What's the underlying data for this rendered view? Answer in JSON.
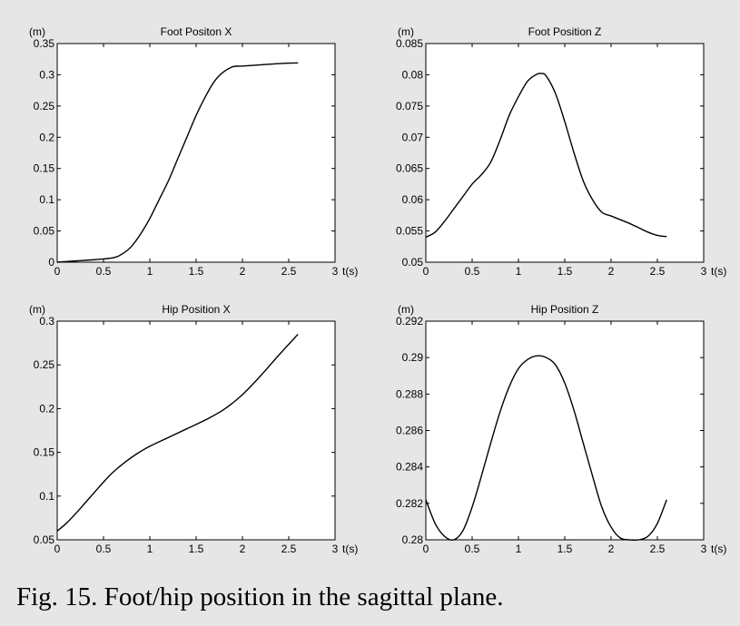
{
  "caption": "Fig. 15. Foot/hip position in the sagittal plane.",
  "chart_data": [
    {
      "type": "line",
      "title": "Foot Positon X",
      "ylabel": "(m)",
      "xlabel": "t(s)",
      "xlim": [
        0,
        3
      ],
      "ylim": [
        0,
        0.35
      ],
      "xticks": [
        "0",
        "0.5",
        "1",
        "1.5",
        "2",
        "2.5",
        "3"
      ],
      "yticks": [
        "0",
        "0.05",
        "0.1",
        "0.15",
        "0.2",
        "0.25",
        "0.3",
        "0.35"
      ],
      "grid": false,
      "series": [
        {
          "x": [
            0,
            0.2,
            0.4,
            0.6,
            0.7,
            0.8,
            0.9,
            1.0,
            1.1,
            1.2,
            1.3,
            1.4,
            1.5,
            1.6,
            1.7,
            1.8,
            1.9,
            2.0,
            2.2,
            2.4,
            2.6
          ],
          "values": [
            0,
            0.002,
            0.004,
            0.007,
            0.013,
            0.025,
            0.045,
            0.07,
            0.1,
            0.13,
            0.165,
            0.2,
            0.235,
            0.265,
            0.29,
            0.305,
            0.313,
            0.314,
            0.316,
            0.318,
            0.319
          ]
        }
      ]
    },
    {
      "type": "line",
      "title": "Foot Position Z",
      "ylabel": "(m)",
      "xlabel": "t(s)",
      "xlim": [
        0,
        3
      ],
      "ylim": [
        0.05,
        0.085
      ],
      "xticks": [
        "0",
        "0.5",
        "1",
        "1.5",
        "2",
        "2.5",
        "3"
      ],
      "yticks": [
        "0.05",
        "0.055",
        "0.06",
        "0.065",
        "0.07",
        "0.075",
        "0.08",
        "0.085"
      ],
      "grid": false,
      "series": [
        {
          "x": [
            0,
            0.1,
            0.2,
            0.3,
            0.4,
            0.5,
            0.6,
            0.7,
            0.8,
            0.9,
            1.0,
            1.1,
            1.2,
            1.25,
            1.3,
            1.4,
            1.5,
            1.6,
            1.7,
            1.8,
            1.9,
            2.0,
            2.1,
            2.2,
            2.3,
            2.4,
            2.5,
            2.6
          ],
          "values": [
            0.054,
            0.0548,
            0.0565,
            0.0585,
            0.0605,
            0.0625,
            0.064,
            0.066,
            0.0695,
            0.0735,
            0.0765,
            0.079,
            0.0801,
            0.0802,
            0.0798,
            0.077,
            0.0725,
            0.0675,
            0.063,
            0.06,
            0.058,
            0.0574,
            0.0568,
            0.0562,
            0.0555,
            0.0548,
            0.0543,
            0.0541
          ]
        }
      ]
    },
    {
      "type": "line",
      "title": "Hip Position X",
      "ylabel": "(m)",
      "xlabel": "t(s)",
      "xlim": [
        0,
        3
      ],
      "ylim": [
        0.05,
        0.3
      ],
      "xticks": [
        "0",
        "0.5",
        "1",
        "1.5",
        "2",
        "2.5",
        "3"
      ],
      "yticks": [
        "0.05",
        "0.1",
        "0.15",
        "0.2",
        "0.25",
        "0.3"
      ],
      "grid": false,
      "series": [
        {
          "x": [
            0,
            0.1,
            0.2,
            0.3,
            0.4,
            0.5,
            0.6,
            0.7,
            0.8,
            0.9,
            1.0,
            1.2,
            1.4,
            1.6,
            1.8,
            2.0,
            2.2,
            2.4,
            2.6
          ],
          "values": [
            0.06,
            0.069,
            0.08,
            0.092,
            0.104,
            0.116,
            0.127,
            0.136,
            0.144,
            0.151,
            0.157,
            0.167,
            0.177,
            0.187,
            0.199,
            0.216,
            0.238,
            0.262,
            0.285
          ]
        }
      ]
    },
    {
      "type": "line",
      "title": "Hip Position Z",
      "ylabel": "(m)",
      "xlabel": "t(s)",
      "xlim": [
        0,
        3
      ],
      "ylim": [
        0.28,
        0.292
      ],
      "xticks": [
        "0",
        "0.5",
        "1",
        "1.5",
        "2",
        "2.5",
        "3"
      ],
      "yticks": [
        "0.28",
        "0.282",
        "0.284",
        "0.286",
        "0.288",
        "0.29",
        "0.292"
      ],
      "grid": false,
      "series": [
        {
          "x": [
            0,
            0.1,
            0.2,
            0.3,
            0.4,
            0.5,
            0.6,
            0.7,
            0.8,
            0.9,
            1.0,
            1.1,
            1.2,
            1.3,
            1.4,
            1.5,
            1.6,
            1.7,
            1.8,
            1.9,
            2.0,
            2.1,
            2.2,
            2.3,
            2.4,
            2.5,
            2.6
          ],
          "values": [
            0.2822,
            0.2809,
            0.2802,
            0.28,
            0.2805,
            0.2818,
            0.2835,
            0.2853,
            0.287,
            0.2884,
            0.2894,
            0.2899,
            0.2901,
            0.29,
            0.2896,
            0.2886,
            0.2871,
            0.2853,
            0.2835,
            0.2818,
            0.2807,
            0.2801,
            0.28,
            0.28,
            0.2802,
            0.2809,
            0.2822
          ]
        }
      ]
    }
  ]
}
